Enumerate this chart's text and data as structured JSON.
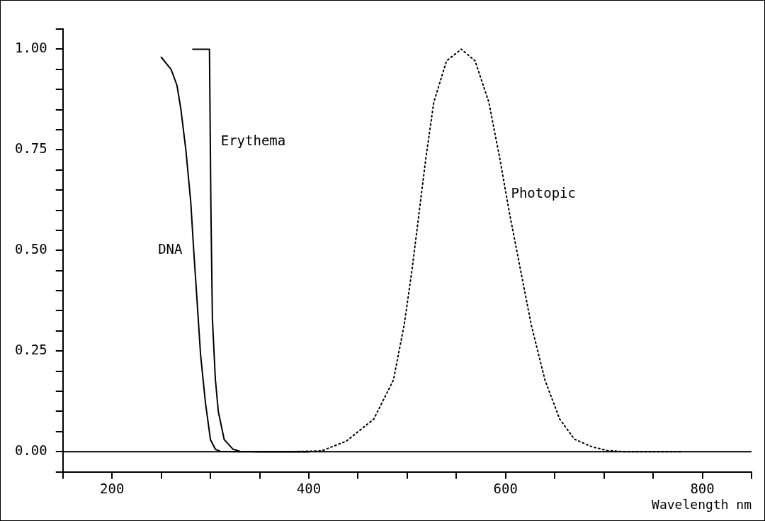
{
  "chart_data": {
    "type": "line",
    "xlabel": "Wavelength nm",
    "xlim": [
      150,
      850
    ],
    "xticks": [
      {
        "value": 150,
        "label": null
      },
      200,
      {
        "value": 250,
        "label": null
      },
      {
        "value": 300,
        "label": null
      },
      {
        "value": 350,
        "label": null
      },
      400,
      {
        "value": 450,
        "label": null
      },
      {
        "value": 500,
        "label": null
      },
      {
        "value": 550,
        "label": null
      },
      600,
      {
        "value": 650,
        "label": null
      },
      {
        "value": 700,
        "label": null
      },
      {
        "value": 750,
        "label": null
      },
      800,
      {
        "value": 850,
        "label": null
      }
    ],
    "ylim": [
      -0.05,
      1.05
    ],
    "yticks": [
      {
        "value": -0.05,
        "label": null
      },
      {
        "value": 0,
        "label": "0.00"
      },
      {
        "value": 0.05,
        "label": null
      },
      {
        "value": 0.1,
        "label": null
      },
      {
        "value": 0.15,
        "label": null
      },
      {
        "value": 0.2,
        "label": null
      },
      {
        "value": 0.25,
        "label": "0.25"
      },
      {
        "value": 0.3,
        "label": null
      },
      {
        "value": 0.35,
        "label": null
      },
      {
        "value": 0.4,
        "label": null
      },
      {
        "value": 0.45,
        "label": null
      },
      {
        "value": 0.5,
        "label": "0.50"
      },
      {
        "value": 0.55,
        "label": null
      },
      {
        "value": 0.6,
        "label": null
      },
      {
        "value": 0.65,
        "label": null
      },
      {
        "value": 0.7,
        "label": null
      },
      {
        "value": 0.75,
        "label": "0.75"
      },
      {
        "value": 0.8,
        "label": null
      },
      {
        "value": 0.85,
        "label": null
      },
      {
        "value": 0.9,
        "label": null
      },
      {
        "value": 0.95,
        "label": null
      },
      {
        "value": 1,
        "label": "1.00"
      },
      {
        "value": 1.05,
        "label": null
      }
    ],
    "grid": false,
    "legend": false,
    "marker": "none",
    "ref_lines": [
      {
        "axis": "y",
        "value": 0,
        "color": "#000000"
      }
    ],
    "series": [
      {
        "name": "DNA",
        "color": "#000000",
        "line_style": "solid",
        "x": [
          250,
          260,
          266,
          270,
          275,
          280,
          283,
          286,
          290,
          295,
          300,
          305,
          310,
          330,
          400
        ],
        "values": [
          0.98,
          0.95,
          0.91,
          0.85,
          0.75,
          0.62,
          0.5,
          0.39,
          0.24,
          0.12,
          0.03,
          0.006,
          0.001,
          0,
          0
        ]
      },
      {
        "name": "Erythema",
        "color": "#000000",
        "line_style": "solid",
        "x": [
          282,
          299,
          300.5,
          302,
          305,
          308,
          314,
          323,
          330,
          350,
          400
        ],
        "values": [
          1,
          1,
          0.6,
          0.33,
          0.18,
          0.1,
          0.03,
          0.006,
          0.001,
          0,
          0
        ]
      },
      {
        "name": "Photopic",
        "color": "#000000",
        "line_style": "dotted",
        "x": [
          380,
          413,
          438,
          466,
          486,
          497,
          505,
          512,
          519,
          527,
          540,
          555,
          569,
          583,
          594,
          604,
          615,
          626,
          640,
          655,
          670,
          688,
          703,
          720,
          780
        ],
        "values": [
          0,
          0.002,
          0.026,
          0.081,
          0.178,
          0.316,
          0.454,
          0.592,
          0.73,
          0.868,
          0.971,
          1,
          0.971,
          0.868,
          0.73,
          0.592,
          0.454,
          0.316,
          0.178,
          0.081,
          0.031,
          0.012,
          0.003,
          0,
          0
        ]
      }
    ]
  }
}
